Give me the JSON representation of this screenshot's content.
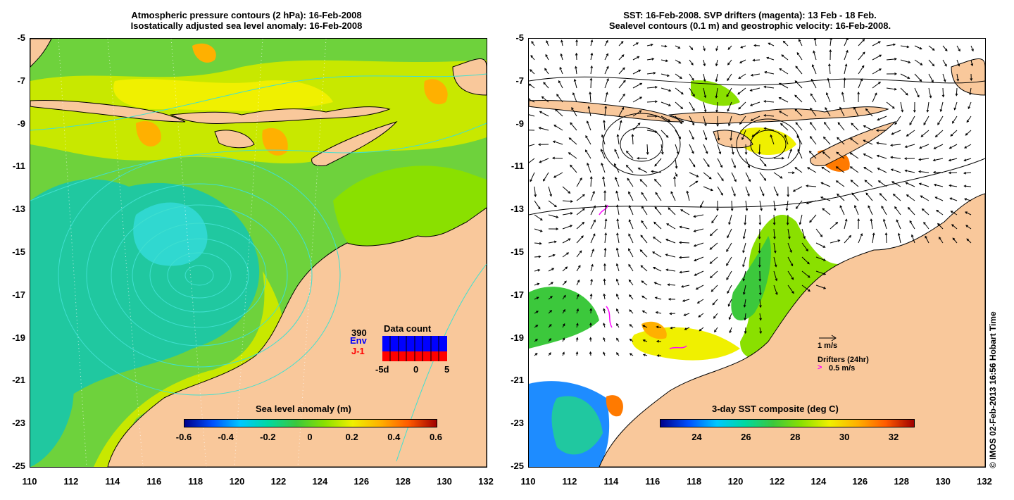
{
  "left_panel": {
    "title_line1": "Atmospheric pressure contours (2 hPa): 16-Feb-2008",
    "title_line2": "Isostatically adjusted sea level anomaly: 16-Feb-2008",
    "colorbar_title": "Sea level anomaly (m)",
    "colorbar_ticks": [
      "-0.6",
      "-0.4",
      "-0.2",
      "0",
      "0.2",
      "0.4",
      "0.6"
    ],
    "colorbar_range": [
      -0.6,
      0.6
    ],
    "colorbar_colors": [
      "#00008b",
      "#0050ff",
      "#00c8ff",
      "#00d8a0",
      "#3cc83c",
      "#8ae000",
      "#f0f000",
      "#ffb000",
      "#ff5a00",
      "#a00000"
    ],
    "data_count": {
      "title": "Data count",
      "count": "390",
      "series1_label": "Env",
      "series2_label": "J-1",
      "x_ticks": [
        "-5d",
        "0",
        "5"
      ],
      "series1_color": "#0000ff",
      "series2_color": "#ff0000"
    }
  },
  "right_panel": {
    "title_line1": "SST: 16-Feb-2008. SVP drifters (magenta): 13 Feb - 18 Feb.",
    "title_line2": "Sealevel contours (0.1 m) and geostrophic velocity: 16-Feb-2008.",
    "colorbar_title": "3-day SST composite (deg C)",
    "colorbar_ticks": [
      "24",
      "26",
      "28",
      "30",
      "32"
    ],
    "colorbar_range": [
      22.5,
      32.8
    ],
    "colorbar_colors": [
      "#00008b",
      "#0050ff",
      "#00c8ff",
      "#00d8a0",
      "#3cc83c",
      "#8ae000",
      "#f0f000",
      "#ffb000",
      "#ff5a00",
      "#a00000"
    ],
    "velocity_scale_label": "1 m/s",
    "drifters_label": "Drifters (24hr)",
    "drifter_speed_label": "0.5 m/s",
    "drifter_color": "#ff00ff"
  },
  "axes": {
    "y_ticks": [
      "-5",
      "-7",
      "-9",
      "-11",
      "-13",
      "-15",
      "-17",
      "-19",
      "-21",
      "-23",
      "-25"
    ],
    "x_ticks": [
      "110",
      "112",
      "114",
      "116",
      "118",
      "120",
      "122",
      "124",
      "126",
      "128",
      "130",
      "132"
    ],
    "lat_range": [
      -25,
      -5
    ],
    "lon_range": [
      110,
      132
    ]
  },
  "colors": {
    "land": "#f9c89b",
    "contour": "#40e0d0",
    "sla_green": "#6ed23c",
    "sla_teal": "#20c8a0",
    "sla_cyan": "#30d8d0",
    "sla_yellow": "#f0f000",
    "sla_orange": "#ffb000"
  },
  "credit": "© IMOS 02-Feb-2013 16:56 Hobart Time"
}
